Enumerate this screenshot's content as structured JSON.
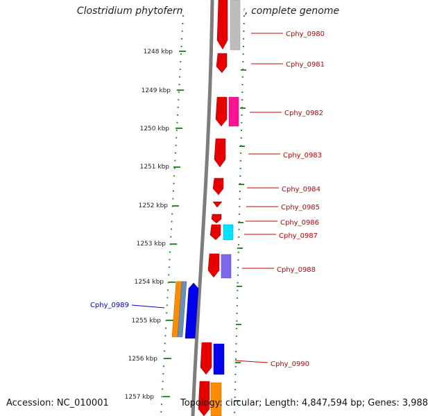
{
  "title": "Clostridium phytofermentans ISDg, complete genome",
  "accession": "Accession: NC_010001",
  "summary": "Topology: circular; Length: 4,847,594 bp; Genes: 3,988",
  "colors": {
    "forward_label": "#cc0000",
    "reverse_label": "#0000cc",
    "axis": "#8a8a8a",
    "ticks": "#2e8b2e"
  },
  "scale_ticks": [
    {
      "label": "1248 kbp"
    },
    {
      "label": "1249 kbp"
    },
    {
      "label": "1250 kbp"
    },
    {
      "label": "1251 kbp"
    },
    {
      "label": "1252 kbp"
    },
    {
      "label": "1253 kbp"
    },
    {
      "label": "1254 kbp"
    },
    {
      "label": "1255 kbp"
    },
    {
      "label": "1256 kbp"
    },
    {
      "label": "1257 kbp"
    }
  ],
  "gene_labels": [
    {
      "name": "Cphy_0980",
      "strand": "forward"
    },
    {
      "name": "Cphy_0981",
      "strand": "forward"
    },
    {
      "name": "Cphy_0982",
      "strand": "forward"
    },
    {
      "name": "Cphy_0983",
      "strand": "forward"
    },
    {
      "name": "Cphy_0984",
      "strand": "forward"
    },
    {
      "name": "Cphy_0985",
      "strand": "forward"
    },
    {
      "name": "Cphy_0986",
      "strand": "forward"
    },
    {
      "name": "Cphy_0987",
      "strand": "forward"
    },
    {
      "name": "Cphy_0988",
      "strand": "forward"
    },
    {
      "name": "Cphy_0989",
      "strand": "reverse"
    },
    {
      "name": "Cphy_0990",
      "strand": "forward"
    }
  ]
}
